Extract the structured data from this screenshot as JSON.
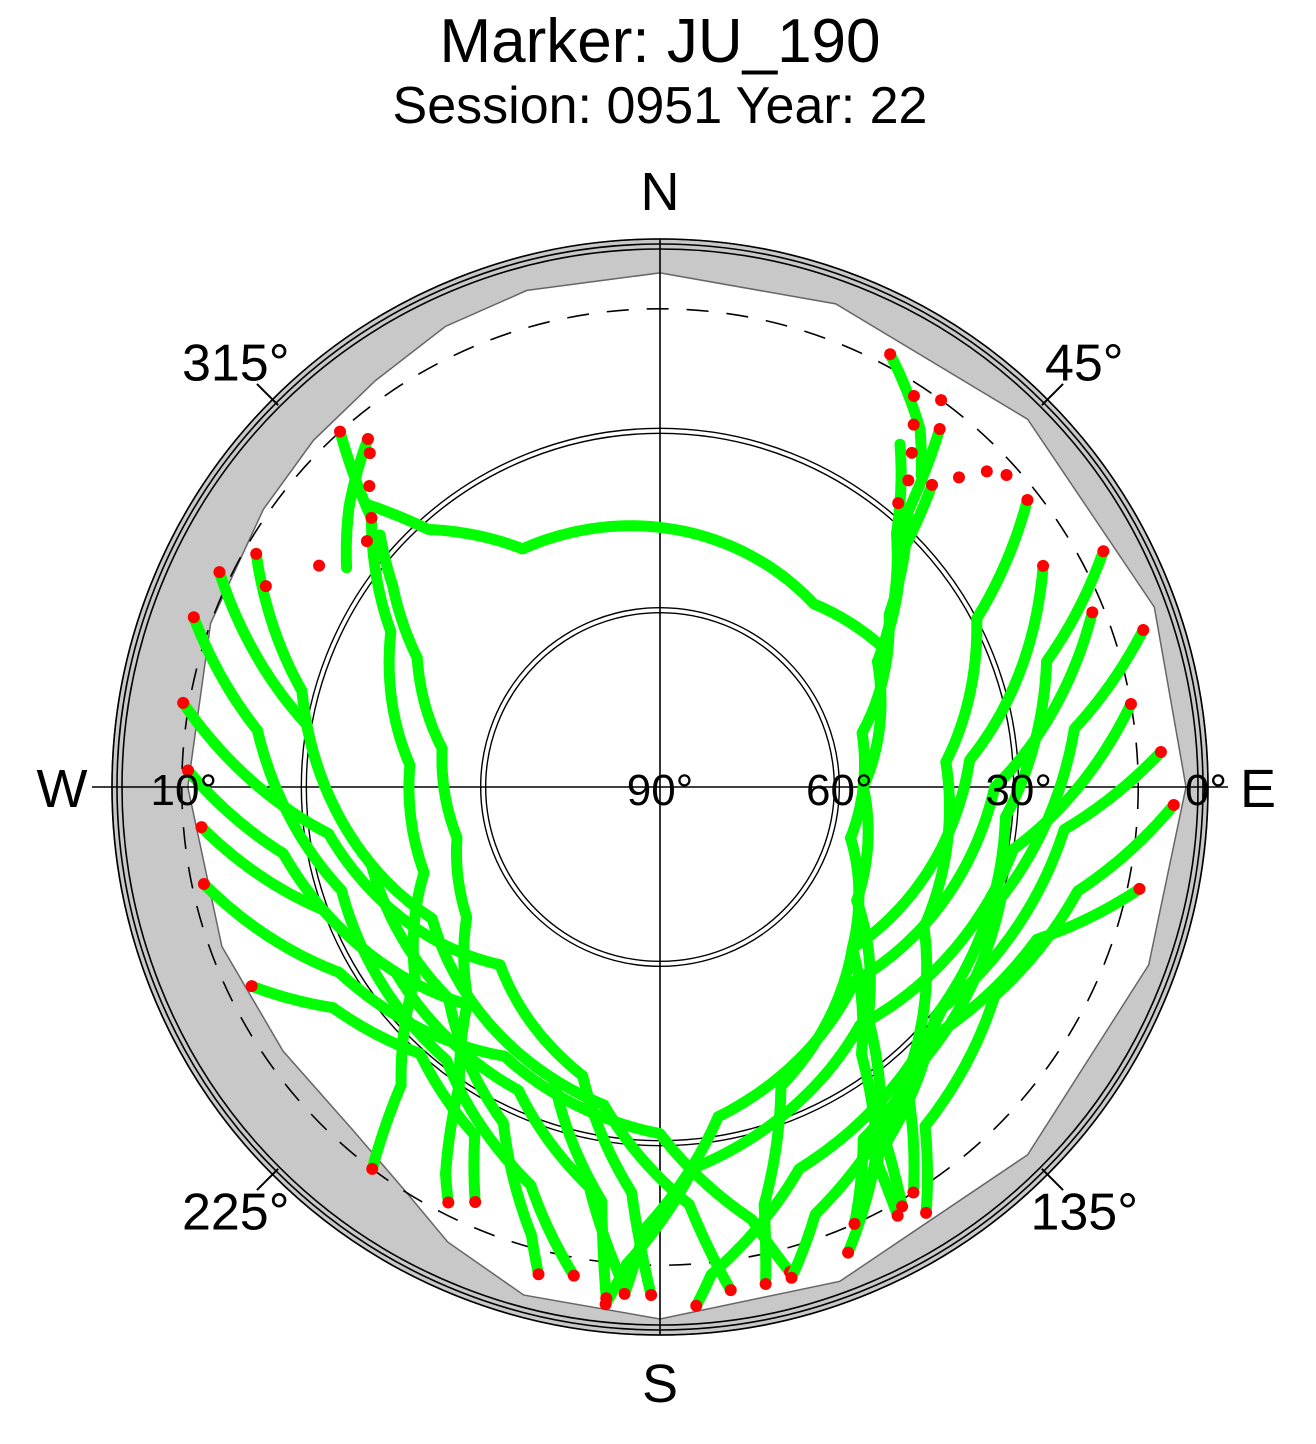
{
  "chart_data": {
    "type": "scatter",
    "projection": "polar-skyplot",
    "title": "Marker: JU_190",
    "subtitle": "Session: 0951 Year: 22",
    "cardinals": {
      "north": "N",
      "east": "E",
      "south": "S",
      "west": "W"
    },
    "azimuth_labels": [
      {
        "az": 45,
        "text": "45°"
      },
      {
        "az": 135,
        "text": "135°"
      },
      {
        "az": 225,
        "text": "225°"
      },
      {
        "az": 315,
        "text": "315°"
      }
    ],
    "elevation_labels": [
      {
        "el": 90,
        "text": "90°"
      },
      {
        "el": 60,
        "text": "60°"
      },
      {
        "el": 30,
        "text": "30°"
      },
      {
        "el": 0,
        "text": "0°"
      },
      {
        "el": 10,
        "text": "10°"
      }
    ],
    "elevation_rings": [
      0,
      30,
      60
    ],
    "cutoff_elevation": 10,
    "grid": true,
    "colors": {
      "tracked": "#00ff00",
      "flagged": "#ff0000",
      "obstruction": "#c8c8c8",
      "axes": "#000000"
    },
    "obstruction_mask": [
      {
        "az": 0,
        "el": 4
      },
      {
        "az": 20,
        "el": 4
      },
      {
        "az": 45,
        "el": 3
      },
      {
        "az": 70,
        "el": 2
      },
      {
        "az": 90,
        "el": 2
      },
      {
        "az": 110,
        "el": 3
      },
      {
        "az": 135,
        "el": 3
      },
      {
        "az": 160,
        "el": 2
      },
      {
        "az": 180,
        "el": 1
      },
      {
        "az": 195,
        "el": 2
      },
      {
        "az": 205,
        "el": 6
      },
      {
        "az": 212,
        "el": 10
      },
      {
        "az": 222,
        "el": 13
      },
      {
        "az": 235,
        "el": 13
      },
      {
        "az": 250,
        "el": 12
      },
      {
        "az": 270,
        "el": 11
      },
      {
        "az": 290,
        "el": 10
      },
      {
        "az": 305,
        "el": 9
      },
      {
        "az": 315,
        "el": 8
      },
      {
        "az": 325,
        "el": 7
      },
      {
        "az": 335,
        "el": 5
      },
      {
        "az": 345,
        "el": 4
      },
      {
        "az": 360,
        "el": 4
      }
    ],
    "series": [
      {
        "flag": "both",
        "points": [
          {
            "az": 312,
            "el": 27
          },
          {
            "az": 307,
            "el": 34
          },
          {
            "az": 298,
            "el": 44
          },
          {
            "az": 280,
            "el": 53
          },
          {
            "az": 256,
            "el": 55
          },
          {
            "az": 236,
            "el": 51
          },
          {
            "az": 222,
            "el": 42
          },
          {
            "az": 214,
            "el": 30
          },
          {
            "az": 209,
            "el": 16
          },
          {
            "az": 207,
            "el": 12
          }
        ]
      },
      {
        "flag": "both",
        "points": [
          {
            "az": 38,
            "el": 14
          },
          {
            "az": 42,
            "el": 28
          },
          {
            "az": 53,
            "el": 42
          },
          {
            "az": 75,
            "el": 55
          },
          {
            "az": 105,
            "el": 57
          },
          {
            "az": 130,
            "el": 48
          },
          {
            "az": 143,
            "el": 34
          },
          {
            "az": 150,
            "el": 17
          },
          {
            "az": 151,
            "el": 8
          }
        ]
      },
      {
        "flag": "both",
        "points": [
          {
            "az": 318,
            "el": 10
          },
          {
            "az": 313,
            "el": 24
          },
          {
            "az": 300,
            "el": 38
          },
          {
            "az": 275,
            "el": 48
          },
          {
            "az": 250,
            "el": 48
          },
          {
            "az": 232,
            "el": 38
          },
          {
            "az": 221,
            "el": 24
          },
          {
            "az": 217,
            "el": 10
          }
        ]
      },
      {
        "flag": "both",
        "points": [
          {
            "az": 35,
            "el": 20
          },
          {
            "az": 43,
            "el": 32
          },
          {
            "az": 60,
            "el": 48
          },
          {
            "az": 90,
            "el": 56
          },
          {
            "az": 120,
            "el": 52
          },
          {
            "az": 138,
            "el": 38
          },
          {
            "az": 147,
            "el": 22
          },
          {
            "az": 150,
            "el": 9
          }
        ]
      },
      {
        "flag": "both",
        "points": [
          {
            "az": 300,
            "el": 12
          },
          {
            "az": 285,
            "el": 28
          },
          {
            "az": 255,
            "el": 40
          },
          {
            "az": 225,
            "el": 40
          },
          {
            "az": 205,
            "el": 28
          },
          {
            "az": 196,
            "el": 12
          },
          {
            "az": 194,
            "el": 6
          }
        ]
      },
      {
        "flag": "both",
        "points": [
          {
            "az": 290,
            "el": 7
          },
          {
            "az": 278,
            "el": 22
          },
          {
            "az": 252,
            "el": 34
          },
          {
            "az": 218,
            "el": 32
          },
          {
            "az": 198,
            "el": 20
          },
          {
            "az": 190,
            "el": 7
          }
        ]
      },
      {
        "flag": "both",
        "points": [
          {
            "az": 272,
            "el": 11
          },
          {
            "az": 260,
            "el": 26
          },
          {
            "az": 235,
            "el": 36
          },
          {
            "az": 205,
            "el": 34
          },
          {
            "az": 190,
            "el": 22
          },
          {
            "az": 184,
            "el": 6
          }
        ]
      },
      {
        "flag": "both",
        "points": [
          {
            "az": 265,
            "el": 13
          },
          {
            "az": 250,
            "el": 30
          },
          {
            "az": 220,
            "el": 42
          },
          {
            "az": 190,
            "el": 36
          },
          {
            "az": 176,
            "el": 20
          },
          {
            "az": 172,
            "el": 5
          }
        ]
      },
      {
        "flag": "both",
        "points": [
          {
            "az": 258,
            "el": 12
          },
          {
            "az": 240,
            "el": 28
          },
          {
            "az": 210,
            "el": 38
          },
          {
            "az": 180,
            "el": 32
          },
          {
            "az": 168,
            "el": 16
          },
          {
            "az": 165,
            "el": 6
          }
        ]
      },
      {
        "flag": "both",
        "points": [
          {
            "az": 52,
            "el": 12
          },
          {
            "az": 62,
            "el": 30
          },
          {
            "az": 85,
            "el": 42
          },
          {
            "az": 118,
            "el": 40
          },
          {
            "az": 140,
            "el": 26
          },
          {
            "az": 148,
            "el": 10
          }
        ]
      },
      {
        "flag": "both",
        "points": [
          {
            "az": 62,
            "el": 6
          },
          {
            "az": 72,
            "el": 22
          },
          {
            "az": 95,
            "el": 32
          },
          {
            "az": 130,
            "el": 30
          },
          {
            "az": 150,
            "el": 18
          },
          {
            "az": 158,
            "el": 6
          }
        ]
      },
      {
        "flag": "both",
        "points": [
          {
            "az": 72,
            "el": 5
          },
          {
            "az": 82,
            "el": 20
          },
          {
            "az": 108,
            "el": 30
          },
          {
            "az": 140,
            "el": 26
          },
          {
            "az": 160,
            "el": 14
          },
          {
            "az": 165,
            "el": 5
          }
        ]
      },
      {
        "flag": "both",
        "points": [
          {
            "az": 86,
            "el": 6
          },
          {
            "az": 96,
            "el": 22
          },
          {
            "az": 128,
            "el": 30
          },
          {
            "az": 160,
            "el": 22
          },
          {
            "az": 174,
            "el": 8
          },
          {
            "az": 176,
            "el": 3
          }
        ]
      },
      {
        "flag": "both",
        "points": [
          {
            "az": 80,
            "el": 10
          },
          {
            "az": 100,
            "el": 30
          },
          {
            "az": 140,
            "el": 38
          },
          {
            "az": 175,
            "el": 26
          },
          {
            "az": 184,
            "el": 10
          },
          {
            "az": 186,
            "el": 3
          }
        ]
      },
      {
        "flag": "both",
        "points": [
          {
            "az": 68,
            "el": 12
          },
          {
            "az": 90,
            "el": 34
          },
          {
            "az": 135,
            "el": 44
          },
          {
            "az": 170,
            "el": 34
          },
          {
            "az": 182,
            "el": 16
          },
          {
            "az": 184,
            "el": 5
          }
        ]
      },
      {
        "flag": "both",
        "points": [
          {
            "az": 60,
            "el": 16
          },
          {
            "az": 85,
            "el": 38
          },
          {
            "az": 130,
            "el": 48
          },
          {
            "az": 158,
            "el": 36
          },
          {
            "az": 166,
            "el": 18
          },
          {
            "az": 168,
            "el": 5
          }
        ]
      },
      {
        "flag": "both",
        "points": [
          {
            "az": 296,
            "el": 8
          },
          {
            "az": 280,
            "el": 30
          },
          {
            "az": 240,
            "el": 46
          },
          {
            "az": 200,
            "el": 38
          },
          {
            "az": 188,
            "el": 20
          },
          {
            "az": 186,
            "el": 4
          }
        ]
      },
      {
        "flag": "both",
        "points": [
          {
            "az": 280,
            "el": 9
          },
          {
            "az": 262,
            "el": 34
          },
          {
            "az": 222,
            "el": 50
          },
          {
            "az": 195,
            "el": 40
          },
          {
            "az": 184,
            "el": 22
          },
          {
            "az": 181,
            "el": 5
          }
        ]
      },
      {
        "flag": "both",
        "points": [
          {
            "az": 244,
            "el": 14
          },
          {
            "az": 236,
            "el": 24
          },
          {
            "az": 222,
            "el": 30
          },
          {
            "az": 208,
            "el": 24
          },
          {
            "az": 204,
            "el": 14
          }
        ]
      },
      {
        "flag": "both",
        "points": [
          {
            "az": 102,
            "el": 8
          },
          {
            "az": 112,
            "el": 22
          },
          {
            "az": 132,
            "el": 28
          },
          {
            "az": 150,
            "el": 22
          },
          {
            "az": 156,
            "el": 10
          }
        ]
      },
      {
        "flag": "both",
        "points": [
          {
            "az": 92,
            "el": 4
          },
          {
            "az": 104,
            "el": 18
          },
          {
            "az": 122,
            "el": 24
          },
          {
            "az": 142,
            "el": 18
          },
          {
            "az": 148,
            "el": 6
          }
        ]
      },
      {
        "flag": "both",
        "points": [
          {
            "az": 42,
            "el": 22
          },
          {
            "az": 46,
            "el": 34
          },
          {
            "az": 58,
            "el": 46
          },
          {
            "az": 40,
            "el": 50
          },
          {
            "az": 330,
            "el": 44
          },
          {
            "az": 318,
            "el": 32
          },
          {
            "az": 314,
            "el": 22
          }
        ]
      },
      {
        "flag": "both",
        "points": [
          {
            "az": 28,
            "el": 8
          },
          {
            "az": 36,
            "el": 16
          },
          {
            "az": 40,
            "el": 22
          }
        ]
      },
      {
        "flag": "both",
        "points": [
          {
            "az": 320,
            "el": 14
          },
          {
            "az": 312,
            "el": 20
          },
          {
            "az": 305,
            "el": 26
          }
        ]
      }
    ]
  }
}
